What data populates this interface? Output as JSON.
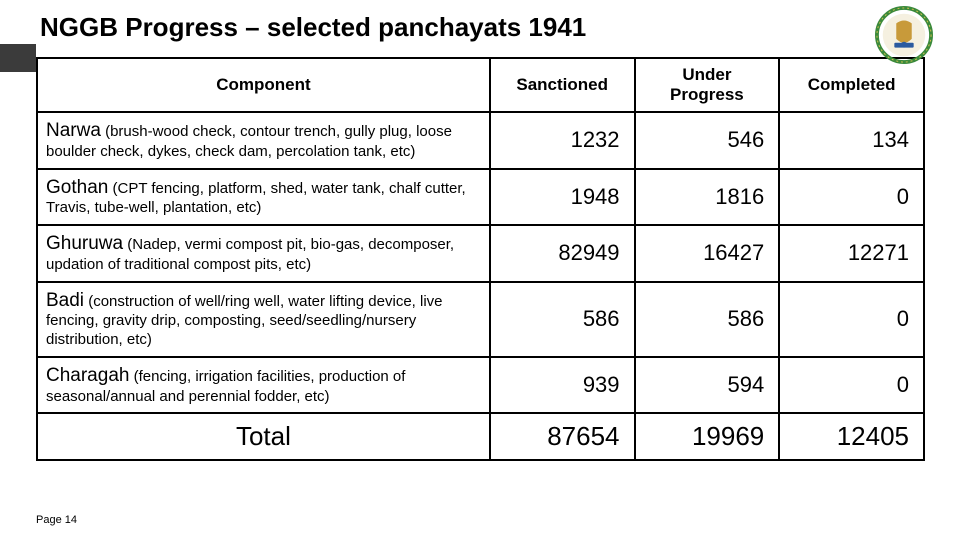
{
  "title": "NGGB Progress – selected panchayats 1941",
  "pageLabel": "Page 14",
  "columns": [
    "Component",
    "Sanctioned",
    "Under Progress",
    "Completed"
  ],
  "rows": [
    {
      "name": "Narwa",
      "desc": "(brush-wood check, contour trench, gully plug, loose boulder check, dykes, check dam, percolation tank, etc)",
      "sanctioned": "1232",
      "under": "546",
      "completed": "134"
    },
    {
      "name": "Gothan",
      "desc": "(CPT fencing, platform, shed, water tank, chalf cutter, Travis, tube-well, plantation, etc)",
      "sanctioned": "1948",
      "under": "1816",
      "completed": "0"
    },
    {
      "name": "Ghuruwa",
      "desc": "(Nadep, vermi compost pit, bio-gas, decomposer, updation of traditional compost pits, etc)",
      "sanctioned": "82949",
      "under": "16427",
      "completed": "12271"
    },
    {
      "name": "Badi",
      "desc": "(construction of well/ring well, water lifting device, live fencing, gravity drip, composting, seed/seedling/nursery distribution, etc)",
      "sanctioned": "586",
      "under": "586",
      "completed": "0"
    },
    {
      "name": "Charagah",
      "desc": "(fencing, irrigation facilities, production of seasonal/annual and perennial fodder, etc)",
      "sanctioned": "939",
      "under": "594",
      "completed": "0"
    }
  ],
  "total": {
    "label": "Total",
    "sanctioned": "87654",
    "under": "19969",
    "completed": "12405"
  },
  "emblem": {
    "outerRing": "#3b8a3b",
    "innerCircle": "#f5f0e0",
    "lion": "#c89a3a",
    "base": "#2a5aa0"
  }
}
